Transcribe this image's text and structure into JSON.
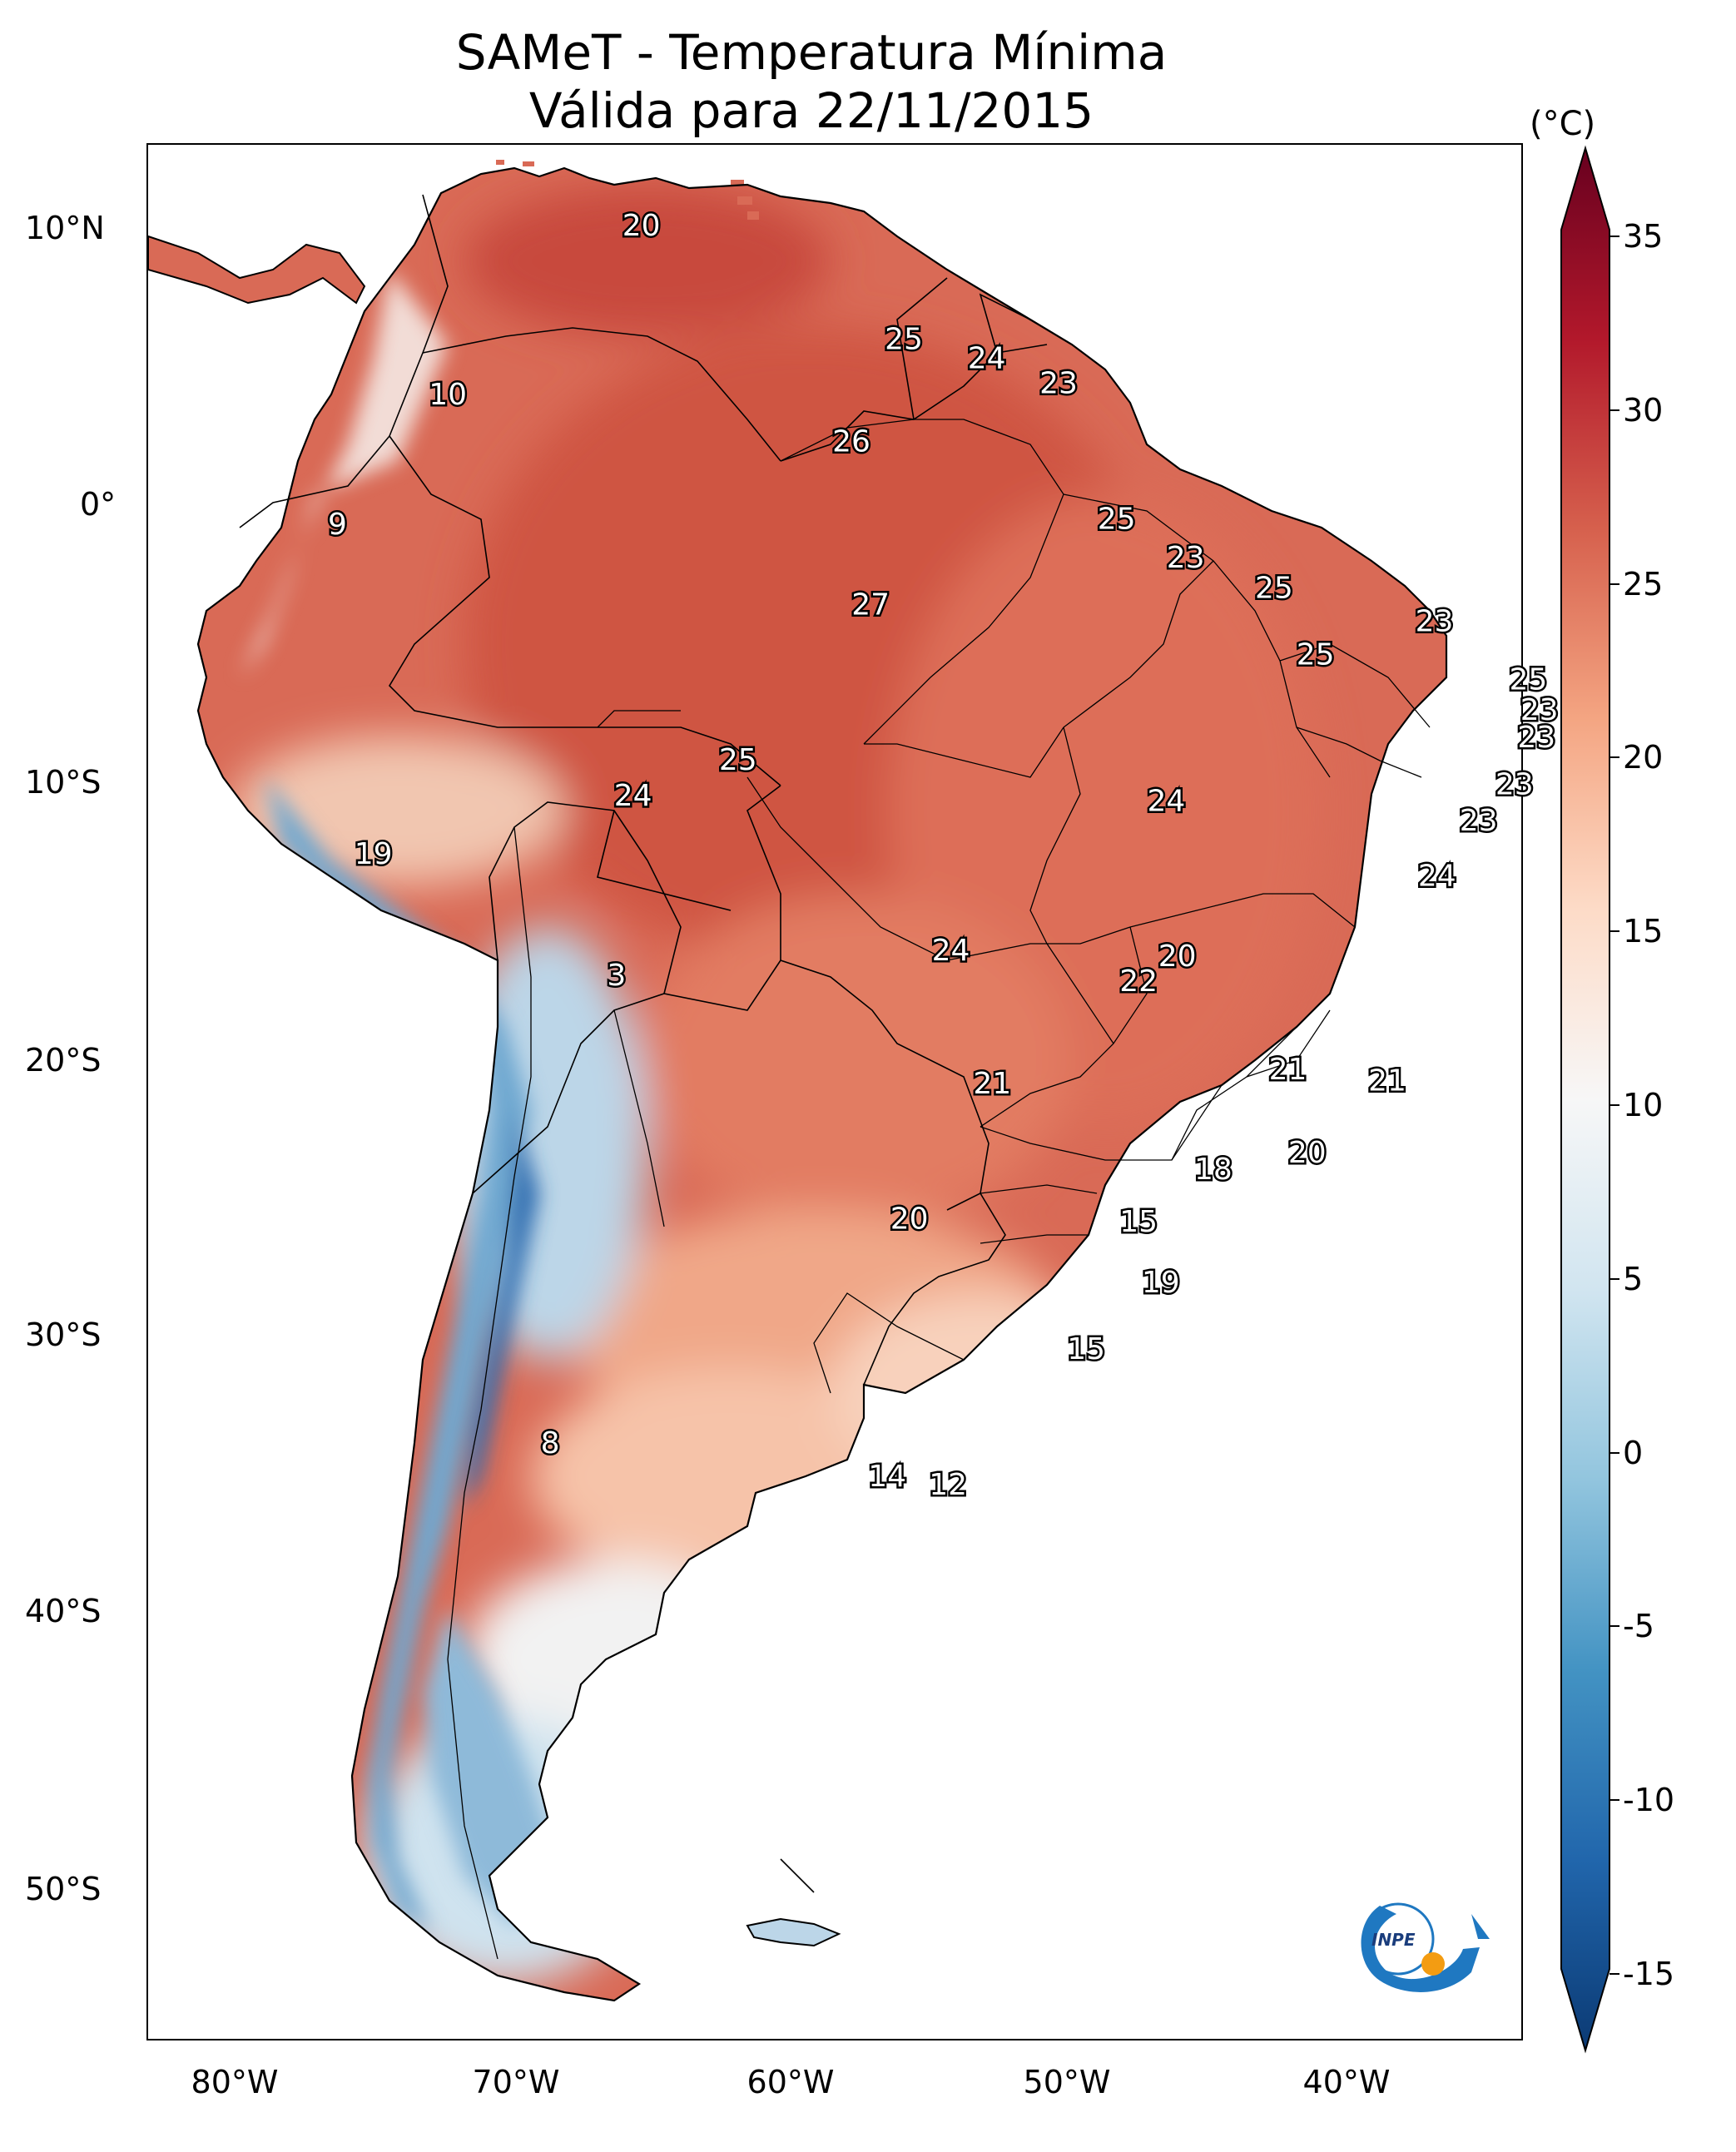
{
  "title": {
    "line1": "SAMeT - Temperatura Mínima",
    "line2": "Válida para 22/11/2015"
  },
  "colorbar": {
    "unit": "(°C)",
    "ticks": [
      "35",
      "30",
      "25",
      "20",
      "15",
      "10",
      "5",
      "0",
      "-5",
      "-10",
      "-15"
    ],
    "min": -15,
    "max": 35,
    "colors": [
      "#0b3a74",
      "#2166ac",
      "#4393c3",
      "#92c5de",
      "#d1e5f0",
      "#f7f7f7",
      "#fddbc7",
      "#f4a582",
      "#d6604d",
      "#b2182b",
      "#67001f"
    ]
  },
  "axes": {
    "lat_labels": [
      "10°N",
      "0°",
      "10°S",
      "20°S",
      "30°S",
      "40°S",
      "50°S"
    ],
    "lon_labels": [
      "80°W",
      "70°W",
      "60°W",
      "50°W",
      "40°W"
    ]
  },
  "station_labels": [
    {
      "text": "20",
      "lon": -67.3,
      "lat": 10.6
    },
    {
      "text": "10",
      "lon": -74.3,
      "lat": 4.5
    },
    {
      "text": "9",
      "lon": -78.3,
      "lat": -0.2
    },
    {
      "text": "25",
      "lon": -57.8,
      "lat": 6.5
    },
    {
      "text": "24",
      "lon": -54.8,
      "lat": 5.8
    },
    {
      "text": "23",
      "lon": -52.2,
      "lat": 4.9
    },
    {
      "text": "26",
      "lon": -59.7,
      "lat": 2.8
    },
    {
      "text": "25",
      "lon": -50.1,
      "lat": 0.0
    },
    {
      "text": "23",
      "lon": -47.6,
      "lat": -1.4
    },
    {
      "text": "27",
      "lon": -59.0,
      "lat": -3.1
    },
    {
      "text": "25",
      "lon": -44.4,
      "lat": -2.5
    },
    {
      "text": "23",
      "lon": -38.6,
      "lat": -3.7
    },
    {
      "text": "25",
      "lon": -42.9,
      "lat": -4.9
    },
    {
      "text": "25",
      "lon": -35.2,
      "lat": -5.8
    },
    {
      "text": "23",
      "lon": -34.8,
      "lat": -6.9
    },
    {
      "text": "23",
      "lon": -34.9,
      "lat": -7.9
    },
    {
      "text": "25",
      "lon": -63.8,
      "lat": -8.7
    },
    {
      "text": "24",
      "lon": -67.6,
      "lat": -10.0
    },
    {
      "text": "23",
      "lon": -35.7,
      "lat": -9.6
    },
    {
      "text": "24",
      "lon": -48.3,
      "lat": -10.2
    },
    {
      "text": "23",
      "lon": -37.0,
      "lat": -10.9
    },
    {
      "text": "19",
      "lon": -77.0,
      "lat": -12.1
    },
    {
      "text": "24",
      "lon": -38.5,
      "lat": -12.9
    },
    {
      "text": "24",
      "lon": -56.1,
      "lat": -15.6
    },
    {
      "text": "20",
      "lon": -47.9,
      "lat": -15.8
    },
    {
      "text": "3",
      "lon": -68.2,
      "lat": -16.5
    },
    {
      "text": "22",
      "lon": -49.3,
      "lat": -16.7
    },
    {
      "text": "21",
      "lon": -43.9,
      "lat": -19.9
    },
    {
      "text": "21",
      "lon": -54.6,
      "lat": -20.4
    },
    {
      "text": "21",
      "lon": -40.3,
      "lat": -20.3
    },
    {
      "text": "20",
      "lon": -43.2,
      "lat": -22.9
    },
    {
      "text": "18",
      "lon": -46.6,
      "lat": -23.5
    },
    {
      "text": "20",
      "lon": -57.6,
      "lat": -25.3
    },
    {
      "text": "15",
      "lon": -49.3,
      "lat": -25.4
    },
    {
      "text": "19",
      "lon": -48.5,
      "lat": -27.6
    },
    {
      "text": "15",
      "lon": -51.2,
      "lat": -30.0
    },
    {
      "text": "8",
      "lon": -70.6,
      "lat": -33.4
    },
    {
      "text": "14",
      "lon": -58.4,
      "lat": -34.6
    },
    {
      "text": "12",
      "lon": -56.2,
      "lat": -34.9
    }
  ]
}
